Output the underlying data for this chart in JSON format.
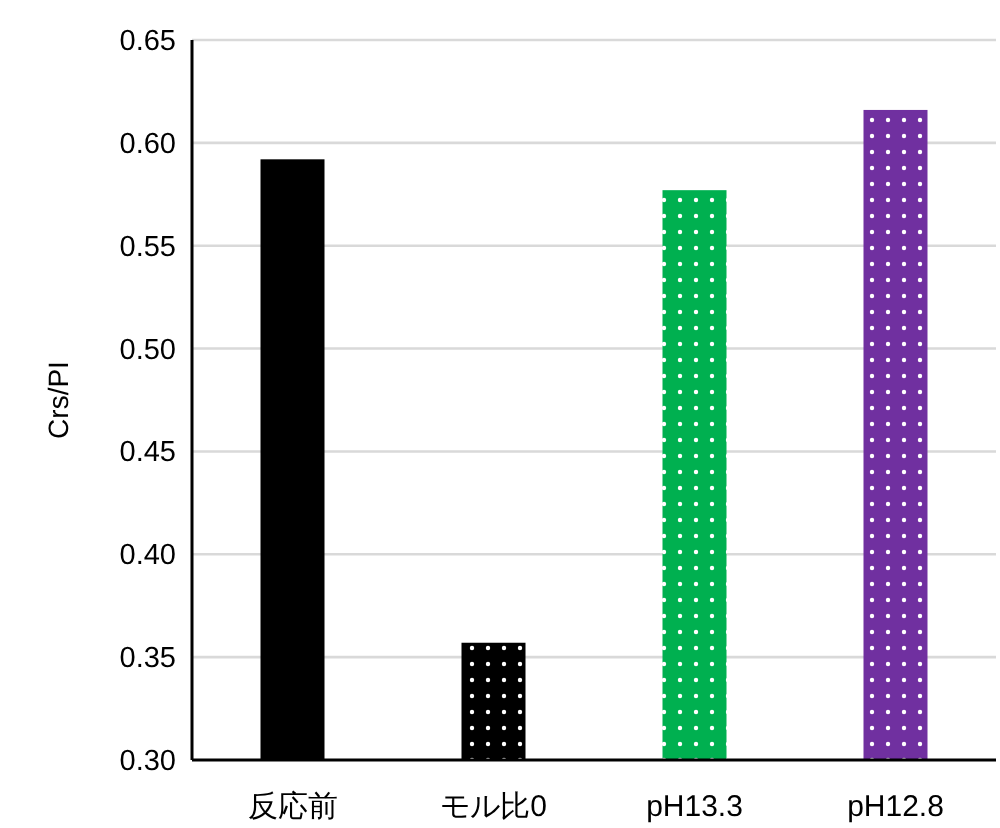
{
  "chart_data": {
    "type": "bar",
    "ylabel": "Crs/PI",
    "categories": [
      "反応前",
      "モル比0",
      "pH13.3",
      "pH12.8"
    ],
    "values": [
      0.592,
      0.357,
      0.577,
      0.616
    ],
    "colors": [
      "#000000",
      "#000000",
      "#00b050",
      "#7030a0"
    ],
    "ylim": [
      0.3,
      0.65
    ],
    "yticks": [
      {
        "value": 0.3,
        "label": "0.30"
      },
      {
        "value": 0.35,
        "label": "0.35"
      },
      {
        "value": 0.4,
        "label": "0.40"
      },
      {
        "value": 0.45,
        "label": "0.45"
      },
      {
        "value": 0.5,
        "label": "0.50"
      },
      {
        "value": 0.55,
        "label": "0.55"
      },
      {
        "value": 0.6,
        "label": "0.60"
      },
      {
        "value": 0.65,
        "label": "0.65"
      }
    ],
    "grid": "y"
  }
}
